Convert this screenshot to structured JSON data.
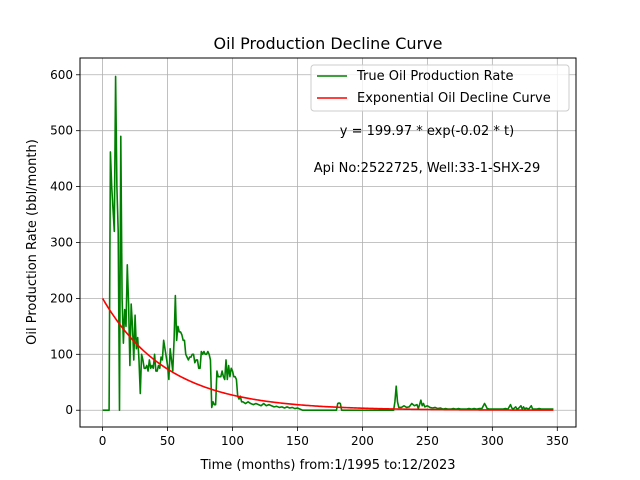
{
  "chart_data": {
    "type": "line",
    "title": "Oil Production Decline Curve",
    "xlabel": "Time (months) from:1/1995 to:12/2023",
    "ylabel": "Oil Production Rate (bbl/month)",
    "xlim": [
      -17.4,
      364.4
    ],
    "ylim": [
      -30,
      630
    ],
    "x_ticks": [
      0,
      50,
      100,
      150,
      200,
      250,
      300,
      350
    ],
    "y_ticks": [
      0,
      100,
      200,
      300,
      400,
      500,
      600
    ],
    "grid": true,
    "legend_position": "upper right",
    "annotations": [
      "y = 199.97 * exp(-0.02 * t)",
      "Api No:2522725, Well:33-1-SHX-29"
    ],
    "series": [
      {
        "name": "True Oil Production Rate",
        "color": "#008000",
        "points": [
          [
            0,
            0
          ],
          [
            4,
            0
          ],
          [
            5,
            0
          ],
          [
            6,
            462
          ],
          [
            7,
            400
          ],
          [
            8,
            360
          ],
          [
            9,
            320
          ],
          [
            10,
            597
          ],
          [
            11,
            400
          ],
          [
            12,
            320
          ],
          [
            13,
            0
          ],
          [
            14,
            490
          ],
          [
            15,
            200
          ],
          [
            16,
            120
          ],
          [
            17,
            180
          ],
          [
            18,
            150
          ],
          [
            19,
            260
          ],
          [
            20,
            190
          ],
          [
            21,
            80
          ],
          [
            22,
            190
          ],
          [
            23,
            150
          ],
          [
            24,
            90
          ],
          [
            25,
            170
          ],
          [
            26,
            110
          ],
          [
            27,
            130
          ],
          [
            28,
            90
          ],
          [
            29,
            30
          ],
          [
            30,
            100
          ],
          [
            31,
            90
          ],
          [
            32,
            75
          ],
          [
            33,
            75
          ],
          [
            34,
            80
          ],
          [
            35,
            70
          ],
          [
            36,
            90
          ],
          [
            37,
            75
          ],
          [
            38,
            80
          ],
          [
            39,
            75
          ],
          [
            40,
            100
          ],
          [
            41,
            70
          ],
          [
            42,
            70
          ],
          [
            43,
            80
          ],
          [
            44,
            75
          ],
          [
            45,
            95
          ],
          [
            46,
            90
          ],
          [
            47,
            125
          ],
          [
            48,
            110
          ],
          [
            49,
            95
          ],
          [
            50,
            80
          ],
          [
            51,
            55
          ],
          [
            52,
            110
          ],
          [
            53,
            90
          ],
          [
            54,
            70
          ],
          [
            55,
            125
          ],
          [
            56,
            205
          ],
          [
            57,
            125
          ],
          [
            58,
            150
          ],
          [
            59,
            140
          ],
          [
            60,
            140
          ],
          [
            61,
            135
          ],
          [
            62,
            125
          ],
          [
            63,
            125
          ],
          [
            64,
            100
          ],
          [
            65,
            95
          ],
          [
            66,
            90
          ],
          [
            67,
            95
          ],
          [
            68,
            95
          ],
          [
            69,
            100
          ],
          [
            70,
            100
          ],
          [
            71,
            85
          ],
          [
            72,
            90
          ],
          [
            73,
            90
          ],
          [
            74,
            75
          ],
          [
            75,
            75
          ],
          [
            76,
            105
          ],
          [
            77,
            100
          ],
          [
            78,
            105
          ],
          [
            79,
            100
          ],
          [
            80,
            100
          ],
          [
            81,
            105
          ],
          [
            82,
            100
          ],
          [
            83,
            90
          ],
          [
            84,
            5
          ],
          [
            85,
            15
          ],
          [
            86,
            10
          ],
          [
            87,
            10
          ],
          [
            88,
            70
          ],
          [
            89,
            60
          ],
          [
            90,
            60
          ],
          [
            91,
            60
          ],
          [
            92,
            70
          ],
          [
            93,
            60
          ],
          [
            94,
            55
          ],
          [
            95,
            90
          ],
          [
            96,
            55
          ],
          [
            97,
            80
          ],
          [
            98,
            60
          ],
          [
            99,
            75
          ],
          [
            100,
            70
          ],
          [
            101,
            60
          ],
          [
            102,
            60
          ],
          [
            103,
            55
          ],
          [
            104,
            25
          ],
          [
            105,
            20
          ],
          [
            106,
            25
          ],
          [
            107,
            15
          ],
          [
            108,
            15
          ],
          [
            110,
            12
          ],
          [
            112,
            15
          ],
          [
            114,
            12
          ],
          [
            116,
            10
          ],
          [
            118,
            12
          ],
          [
            120,
            10
          ],
          [
            122,
            8
          ],
          [
            124,
            12
          ],
          [
            126,
            8
          ],
          [
            128,
            10
          ],
          [
            130,
            8
          ],
          [
            132,
            6
          ],
          [
            134,
            7
          ],
          [
            136,
            5
          ],
          [
            138,
            6
          ],
          [
            140,
            4
          ],
          [
            142,
            6
          ],
          [
            144,
            4
          ],
          [
            146,
            5
          ],
          [
            148,
            3
          ],
          [
            150,
            4
          ],
          [
            152,
            2
          ],
          [
            154,
            0
          ],
          [
            160,
            0
          ],
          [
            170,
            0
          ],
          [
            180,
            0
          ],
          [
            181,
            12
          ],
          [
            182,
            13
          ],
          [
            183,
            12
          ],
          [
            184,
            0
          ],
          [
            190,
            0
          ],
          [
            200,
            0
          ],
          [
            210,
            0
          ],
          [
            220,
            0
          ],
          [
            224,
            0
          ],
          [
            225,
            15
          ],
          [
            226,
            43
          ],
          [
            227,
            15
          ],
          [
            228,
            5
          ],
          [
            230,
            5
          ],
          [
            232,
            8
          ],
          [
            234,
            5
          ],
          [
            236,
            6
          ],
          [
            238,
            12
          ],
          [
            240,
            8
          ],
          [
            242,
            10
          ],
          [
            243,
            3
          ],
          [
            244,
            10
          ],
          [
            245,
            18
          ],
          [
            246,
            8
          ],
          [
            247,
            12
          ],
          [
            248,
            6
          ],
          [
            250,
            8
          ],
          [
            252,
            5
          ],
          [
            254,
            4
          ],
          [
            256,
            5
          ],
          [
            258,
            3
          ],
          [
            260,
            4
          ],
          [
            262,
            2
          ],
          [
            264,
            3
          ],
          [
            266,
            2
          ],
          [
            268,
            2
          ],
          [
            270,
            3
          ],
          [
            272,
            2
          ],
          [
            274,
            3
          ],
          [
            276,
            2
          ],
          [
            278,
            2
          ],
          [
            280,
            2
          ],
          [
            282,
            3
          ],
          [
            284,
            2
          ],
          [
            286,
            3
          ],
          [
            288,
            2
          ],
          [
            290,
            3
          ],
          [
            292,
            3
          ],
          [
            294,
            12
          ],
          [
            295,
            8
          ],
          [
            296,
            3
          ],
          [
            298,
            2
          ],
          [
            300,
            2
          ],
          [
            302,
            2
          ],
          [
            304,
            2
          ],
          [
            306,
            2
          ],
          [
            308,
            2
          ],
          [
            310,
            3
          ],
          [
            312,
            2
          ],
          [
            314,
            10
          ],
          [
            315,
            4
          ],
          [
            316,
            2
          ],
          [
            318,
            6
          ],
          [
            319,
            2
          ],
          [
            320,
            3
          ],
          [
            322,
            8
          ],
          [
            323,
            2
          ],
          [
            324,
            6
          ],
          [
            325,
            2
          ],
          [
            326,
            4
          ],
          [
            328,
            2
          ],
          [
            330,
            8
          ],
          [
            331,
            2
          ],
          [
            332,
            2
          ],
          [
            334,
            2
          ],
          [
            336,
            3
          ],
          [
            338,
            2
          ],
          [
            340,
            2
          ],
          [
            342,
            2
          ],
          [
            344,
            2
          ],
          [
            346,
            2
          ],
          [
            347,
            2
          ]
        ]
      },
      {
        "name": "Exponential Oil Decline Curve",
        "color": "#ff0000",
        "equation": {
          "a": 199.97,
          "b": 0.02
        },
        "x_range": [
          0,
          347
        ]
      }
    ]
  }
}
